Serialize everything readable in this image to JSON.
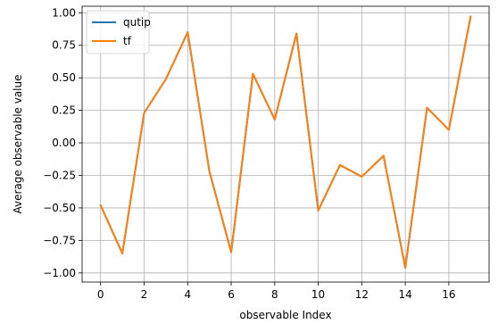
{
  "chart_data": {
    "type": "line",
    "xlabel": "observable Index",
    "ylabel": "Average observable value",
    "x": [
      0,
      1,
      2,
      3,
      4,
      5,
      6,
      7,
      8,
      9,
      10,
      11,
      12,
      13,
      14,
      15,
      16,
      17
    ],
    "series": [
      {
        "name": "qutip",
        "color": "#1f77b4",
        "values": [
          -0.48,
          -0.85,
          0.23,
          0.49,
          0.85,
          -0.22,
          -0.84,
          0.53,
          0.18,
          0.84,
          -0.52,
          -0.17,
          -0.26,
          -0.1,
          -0.96,
          0.27,
          0.1,
          0.97
        ]
      },
      {
        "name": "tf",
        "color": "#ff7f0e",
        "values": [
          -0.48,
          -0.85,
          0.23,
          0.49,
          0.85,
          -0.22,
          -0.84,
          0.53,
          0.18,
          0.84,
          -0.52,
          -0.17,
          -0.26,
          -0.1,
          -0.96,
          0.27,
          0.1,
          0.97
        ]
      }
    ],
    "xlim": [
      -0.85,
      17.85
    ],
    "ylim": [
      -1.07,
      1.05
    ],
    "xticks": [
      0,
      2,
      4,
      6,
      8,
      10,
      12,
      14,
      16
    ],
    "xtick_labels": [
      "0",
      "2",
      "4",
      "6",
      "8",
      "10",
      "12",
      "14",
      "16"
    ],
    "yticks": [
      1.0,
      0.75,
      0.5,
      0.25,
      0.0,
      -0.25,
      -0.5,
      -0.75,
      -1.0
    ],
    "ytick_labels": [
      "1.00",
      "0.75",
      "0.50",
      "0.25",
      "0.00",
      "−0.25",
      "−0.50",
      "−0.75",
      "−1.00"
    ],
    "grid": true,
    "legend_position": "top-left"
  }
}
